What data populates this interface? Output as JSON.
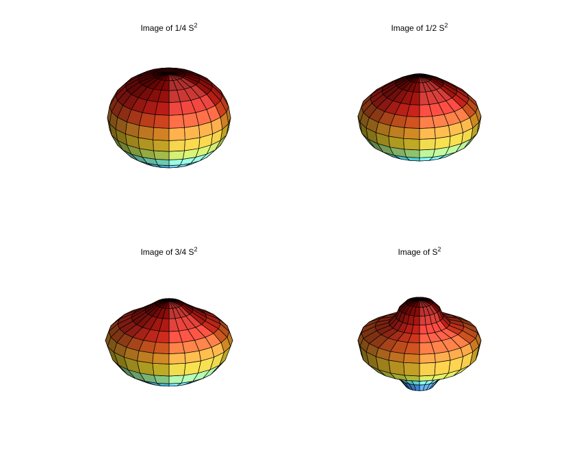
{
  "panels": [
    {
      "title": "Image of 1/4 S",
      "superscript": "2"
    },
    {
      "title": "Image of 1/2 S",
      "superscript": "2"
    },
    {
      "title": "Image of 3/4 S",
      "superscript": "2"
    },
    {
      "title": "Image of S",
      "superscript": "2"
    }
  ]
}
